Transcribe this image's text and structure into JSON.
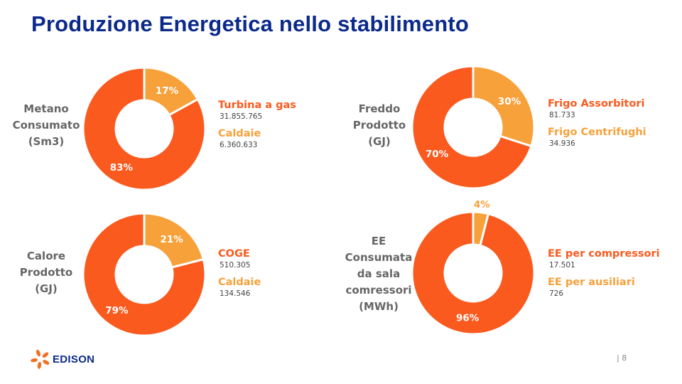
{
  "title": "Produzione Energetica nello stabilimento",
  "colors": {
    "primary": "#fa5a1e",
    "secondary": "#f7a13a",
    "title": "#0b2a8a"
  },
  "chart_data": [
    {
      "type": "pie",
      "title": "Metano\nConsumato\n(Sm3)",
      "slices": [
        {
          "name": "Turbina a  gas",
          "value": "31.855.765",
          "percent": 83,
          "label": "83%",
          "color": "#fa5a1e"
        },
        {
          "name": "Caldaie",
          "value": "6.360.633",
          "percent": 17,
          "label": "17%",
          "color": "#f7a13a"
        }
      ]
    },
    {
      "type": "pie",
      "title": "Freddo\nProdotto\n(GJ)",
      "slices": [
        {
          "name": "Frigo Assorbitori",
          "value": "81.733",
          "percent": 70,
          "label": "70%",
          "color": "#fa5a1e"
        },
        {
          "name": "Frigo Centrifughi",
          "value": "34.936",
          "percent": 30,
          "label": "30%",
          "color": "#f7a13a"
        }
      ]
    },
    {
      "type": "pie",
      "title": "Calore\nProdotto\n(GJ)",
      "slices": [
        {
          "name": "COGE",
          "value": "510.305",
          "percent": 79,
          "label": "79%",
          "color": "#fa5a1e"
        },
        {
          "name": "Caldaie",
          "value": "134.546",
          "percent": 21,
          "label": "21%",
          "color": "#f7a13a"
        }
      ]
    },
    {
      "type": "pie",
      "title": "EE\nConsumata\nda sala\ncomressori\n(MWh)",
      "slices": [
        {
          "name": "EE per compressori",
          "value": "17.501",
          "percent": 96,
          "label": "96%",
          "color": "#fa5a1e"
        },
        {
          "name": "EE per ausiliari",
          "value": "726",
          "percent": 4,
          "label": "4%",
          "color": "#f7a13a"
        }
      ]
    }
  ],
  "footer": {
    "page": "| 8",
    "logo_text": "EDISON"
  }
}
